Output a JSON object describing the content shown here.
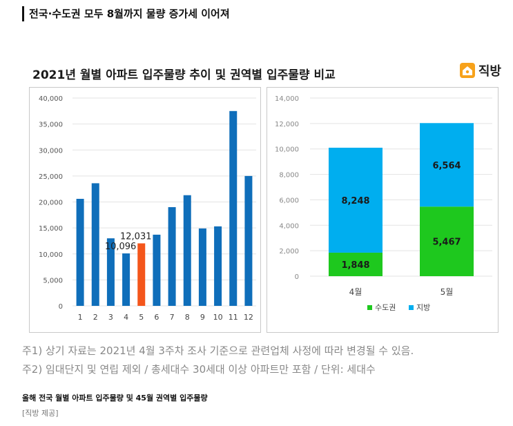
{
  "headline": "전국·수도권 모두 8월까지 물량 증가세 이어져",
  "infographic": {
    "title": "2021년 월별 아파트 입주물량 추이 및 권역별 입주물량 비교",
    "brand": "직방"
  },
  "chart_data": [
    {
      "type": "bar",
      "title": "",
      "categories": [
        "1",
        "2",
        "3",
        "4",
        "5",
        "6",
        "7",
        "8",
        "9",
        "10",
        "11",
        "12"
      ],
      "values": [
        20600,
        23600,
        13000,
        10096,
        12031,
        13700,
        19000,
        21300,
        14900,
        15300,
        37500,
        25000
      ],
      "data_labels": [
        {
          "category": "4",
          "text": "10,096"
        },
        {
          "category": "5",
          "text": "12,031"
        }
      ],
      "highlight_category": "5",
      "highlight_color": "#f4561b",
      "bar_color": "#0f6eba",
      "yticks": [
        "40,000",
        "35,000",
        "30,000",
        "25,000",
        "20,000",
        "15,000",
        "10,000",
        "5,000",
        "0"
      ],
      "ylim": [
        0,
        40000
      ],
      "grid": true
    },
    {
      "type": "bar",
      "stacked": true,
      "title": "",
      "categories": [
        "4월",
        "5월"
      ],
      "series": [
        {
          "name": "수도권",
          "values": [
            1848,
            5467
          ],
          "labels": [
            "1,848",
            "5,467"
          ],
          "color": "#1ec81e"
        },
        {
          "name": "지방",
          "values": [
            8248,
            6564
          ],
          "labels": [
            "8,248",
            "6,564"
          ],
          "color": "#00aeef"
        }
      ],
      "yticks": [
        "14,000",
        "12,000",
        "10,000",
        "8,000",
        "6,000",
        "4,000",
        "2,000",
        "0"
      ],
      "ylim": [
        0,
        14000
      ],
      "grid": true,
      "legend": "bottom"
    }
  ],
  "notes": [
    "주1) 상기 자료는 2021년 4월 3주차 조사 기준으로 관련업체 사정에 따라 변경될 수 있음.",
    "주2) 임대단지 및 연립 제외 / 총세대수 30세대 이상 아파트만 포함 / 단위: 세대수"
  ],
  "caption": "올해 전국 월별 아파트 입주물량 및 45월 권역별 입주물량",
  "credit": "[직방 제공]"
}
